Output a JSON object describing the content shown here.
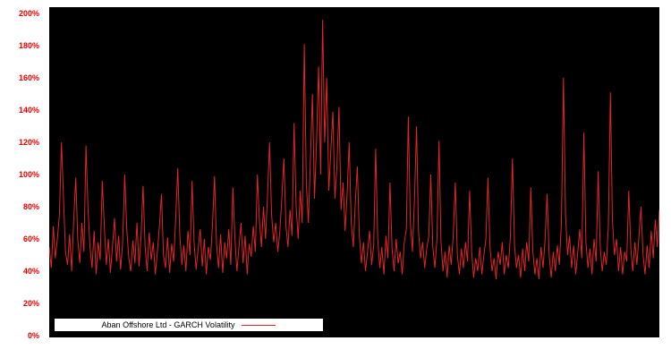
{
  "colors": {
    "page_background": "#ffffff",
    "plot_background": "#000000",
    "series_red": "#e12626",
    "tick_label_red": "#e60000",
    "legend_background": "#ffffff",
    "legend_text": "#000000"
  },
  "chart_data": {
    "type": "line",
    "title": "",
    "xlabel": "",
    "ylabel": "",
    "legend_label": "Aban Offshore Ltd - GARCH Volatility",
    "legend_position": "bottom-left",
    "grid": false,
    "unit": "%",
    "ylim": [
      0,
      200
    ],
    "y_tick_step": 20,
    "y_ticks": [
      "0%",
      "20%",
      "40%",
      "60%",
      "80%",
      "100%",
      "120%",
      "140%",
      "160%",
      "180%",
      "200%"
    ],
    "series": [
      {
        "name": "Aban Offshore Ltd - GARCH Volatility",
        "color": "#e12626",
        "values": [
          55,
          42,
          68,
          48,
          60,
          75,
          120,
          85,
          52,
          44,
          63,
          40,
          72,
          98,
          60,
          45,
          70,
          52,
          118,
          80,
          55,
          42,
          65,
          38,
          58,
          47,
          96,
          68,
          44,
          60,
          39,
          55,
          73,
          46,
          62,
          41,
          58,
          100,
          66,
          48,
          40,
          59,
          45,
          70,
          43,
          61,
          93,
          55,
          40,
          64,
          47,
          58,
          38,
          52,
          68,
          88,
          50,
          42,
          61,
          39,
          57,
          46,
          73,
          104,
          62,
          44,
          56,
          40,
          65,
          50,
          96,
          58,
          41,
          54,
          66,
          43,
          60,
          38,
          55,
          47,
          69,
          99,
          57,
          42,
          63,
          39,
          58,
          48,
          66,
          44,
          92,
          60,
          40,
          55,
          70,
          45,
          62,
          38,
          57,
          49,
          68,
          52,
          100,
          72,
          55,
          80,
          60,
          88,
          120,
          75,
          58,
          70,
          52,
          64,
          85,
          110,
          68,
          55,
          78,
          62,
          132,
          80,
          60,
          90,
          70,
          181,
          95,
          70,
          110,
          150,
          85,
          120,
          167,
          100,
          196,
          120,
          160,
          90,
          115,
          139,
          85,
          105,
          142,
          78,
          95,
          65,
          88,
          120,
          70,
          55,
          82,
          105,
          62,
          45,
          58,
          40,
          52,
          65,
          44,
          56,
          116,
          60,
          42,
          55,
          38,
          62,
          48,
          95,
          54,
          40,
          60,
          45,
          52,
          38,
          58,
          66,
          136,
          70,
          52,
          85,
          130,
          65,
          48,
          58,
          42,
          54,
          62,
          100,
          55,
          42,
          60,
          121,
          58,
          40,
          52,
          36,
          56,
          44,
          62,
          95,
          50,
          38,
          54,
          42,
          58,
          46,
          90,
          52,
          36,
          48,
          40,
          55,
          38,
          50,
          60,
          98,
          55,
          40,
          48,
          35,
          52,
          44,
          58,
          38,
          50,
          42,
          62,
          110,
          56,
          42,
          50,
          36,
          54,
          40,
          58,
          46,
          92,
          52,
          38,
          48,
          35,
          55,
          42,
          60,
          88,
          50,
          36,
          52,
          40,
          56,
          44,
          70,
          160,
          75,
          50,
          62,
          42,
          56,
          38,
          52,
          66,
          48,
          126,
          58,
          42,
          54,
          38,
          60,
          46,
          102,
          55,
          40,
          52,
          44,
          68,
          151,
          72,
          50,
          60,
          40,
          55,
          38,
          52,
          46,
          90,
          54,
          40,
          58,
          44,
          62,
          80,
          50,
          38,
          56,
          42,
          65,
          48,
          72,
          55,
          78
        ]
      }
    ]
  }
}
